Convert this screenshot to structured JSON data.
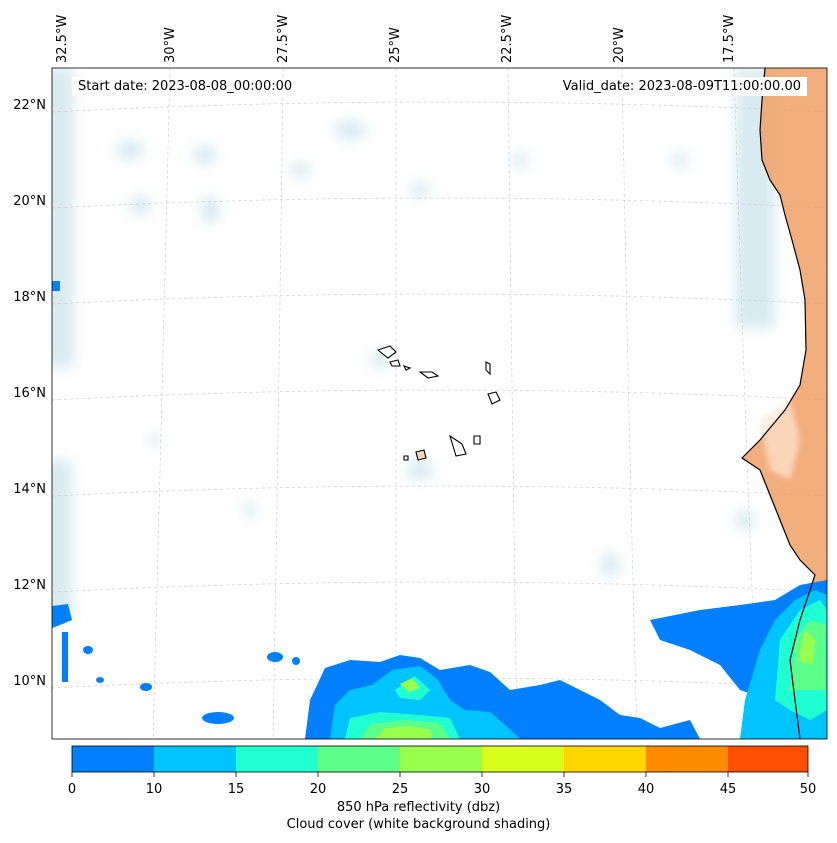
{
  "header": {
    "start_date": "Start date: 2023-08-08_00:00:00",
    "valid_date": "Valid_date: 2023-08-09T11:00:00.00"
  },
  "map": {
    "lon_labels": [
      "32.5°W",
      "30°W",
      "27.5°W",
      "25°W",
      "22.5°W",
      "20°W",
      "17.5°W"
    ],
    "lat_labels": [
      "22°N",
      "20°N",
      "18°N",
      "16°N",
      "14°N",
      "12°N",
      "10°N"
    ],
    "colors": {
      "land_terrain": "#f0a066",
      "cloud_shading": "#b9dbe6",
      "coastline": "#000000"
    }
  },
  "colorbar": {
    "ticks": [
      "0",
      "10",
      "15",
      "20",
      "25",
      "30",
      "35",
      "40",
      "45",
      "50"
    ],
    "colors": [
      "#0080ff",
      "#00c4ff",
      "#1effd2",
      "#5cff8a",
      "#9aff4c",
      "#d8ff1e",
      "#ffd600",
      "#ff8c00",
      "#ff4f00"
    ],
    "label": "850 hPa reflectivity (dbz)",
    "sublabel": "Cloud cover (white background shading)"
  }
}
